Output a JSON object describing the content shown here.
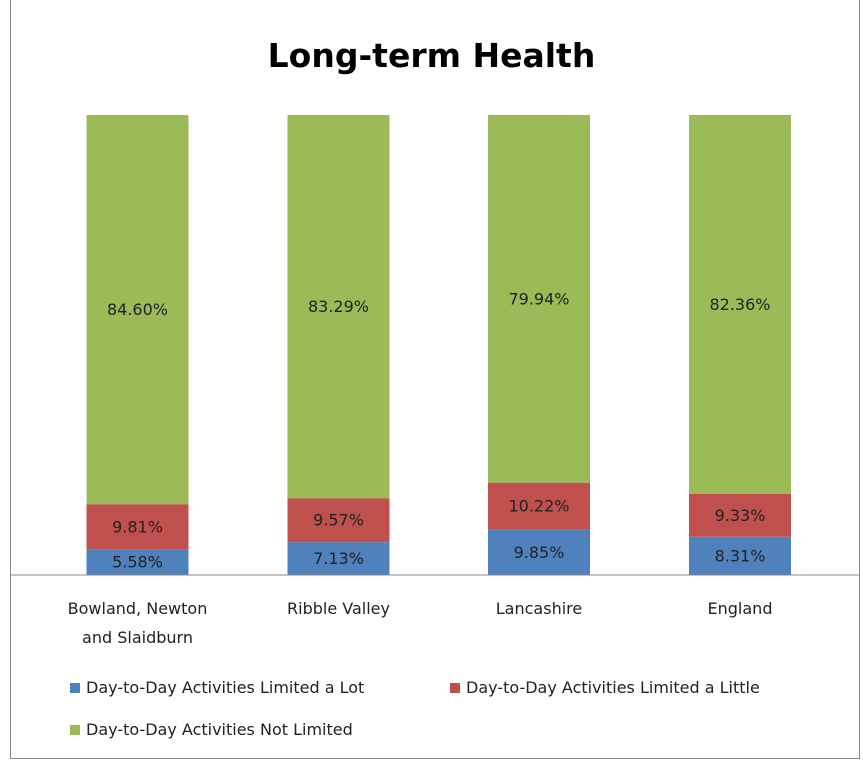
{
  "chart_data": {
    "type": "stacked-bar",
    "title": "Long-term Health",
    "categories": [
      "Bowland, Newton and Slaidburn",
      "Ribble Valley",
      "Lancashire",
      "England"
    ],
    "series": [
      {
        "name": "Day-to-Day Activities Limited a Lot",
        "color": "#4f81bd",
        "values": [
          5.58,
          7.13,
          9.85,
          8.31
        ],
        "value_labels": [
          "5.58%",
          "7.13%",
          "9.85%",
          "8.31%"
        ]
      },
      {
        "name": "Day-to-Day Activities Limited a Little",
        "color": "#c0504d",
        "values": [
          9.81,
          9.57,
          10.22,
          9.33
        ],
        "value_labels": [
          "9.81%",
          "9.57%",
          "10.22%",
          "9.33%"
        ]
      },
      {
        "name": "Day-to-Day Activities Not Limited",
        "color": "#9bbb59",
        "values": [
          84.6,
          83.29,
          79.94,
          82.36
        ],
        "value_labels": [
          "84.60%",
          "83.29%",
          "79.94%",
          "82.36%"
        ]
      }
    ]
  }
}
